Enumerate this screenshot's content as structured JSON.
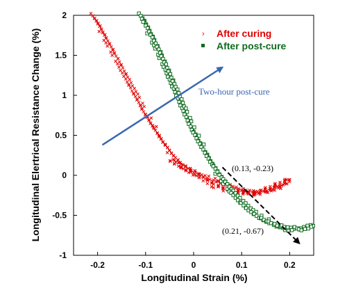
{
  "colors": {
    "after_curing": "#e00000",
    "after_post_cure": "#0e6b1e",
    "annotation_arrow": "#3a66b0"
  },
  "chart_data": {
    "type": "scatter",
    "xlabel": "Longitudinal Strain (%)",
    "ylabel": "Longitudinal Elertrical Resistance Change (%)",
    "xlim": [
      -0.25,
      0.25
    ],
    "ylim": [
      -1,
      2
    ],
    "x_ticks": [
      "-0.2",
      "-0.1",
      "0",
      "0.1",
      "0.2"
    ],
    "y_ticks": [
      "-1",
      "-0.5",
      "0",
      "0.5",
      "1",
      "1.5",
      "2"
    ],
    "grid": false,
    "legend_position": "top-right",
    "series": [
      {
        "name": "After curing",
        "marker": "x",
        "x": [
          -0.21,
          -0.2,
          -0.18,
          -0.16,
          -0.14,
          -0.12,
          -0.1,
          -0.08,
          -0.06,
          -0.04,
          -0.02,
          0.0,
          0.02,
          0.05,
          0.08,
          0.1,
          0.13,
          0.15,
          0.17,
          0.19,
          0.2,
          0.13,
          0.08,
          0.04,
          0.0,
          -0.03,
          -0.05
        ],
        "y": [
          2.0,
          1.9,
          1.68,
          1.45,
          1.22,
          1.0,
          0.77,
          0.57,
          0.38,
          0.22,
          0.1,
          0.02,
          -0.02,
          -0.07,
          -0.14,
          -0.18,
          -0.22,
          -0.2,
          -0.17,
          -0.12,
          -0.05,
          -0.23,
          -0.2,
          -0.12,
          0.05,
          0.13,
          0.2
        ]
      },
      {
        "name": "After post-cure",
        "marker": "square",
        "x": [
          -0.11,
          -0.1,
          -0.08,
          -0.06,
          -0.04,
          -0.02,
          0.0,
          0.02,
          0.04,
          0.06,
          0.08,
          0.1,
          0.12,
          0.14,
          0.16,
          0.18,
          0.2,
          0.22,
          0.24,
          0.25
        ],
        "y": [
          2.0,
          1.88,
          1.65,
          1.38,
          1.1,
          0.82,
          0.55,
          0.33,
          0.12,
          -0.05,
          -0.2,
          -0.33,
          -0.45,
          -0.53,
          -0.6,
          -0.64,
          -0.67,
          -0.67,
          -0.65,
          -0.63
        ]
      }
    ],
    "annotations": [
      {
        "text": "Two-hour post-cure",
        "type": "arrow",
        "from": [
          -0.19,
          0.38
        ],
        "to": [
          0.06,
          1.35
        ]
      },
      {
        "text": "(0.13, -0.23)",
        "point": [
          0.13,
          -0.23
        ]
      },
      {
        "text": "(0.21, -0.67)",
        "point": [
          0.21,
          -0.67
        ]
      },
      {
        "text": "",
        "type": "dashed-arrow",
        "from": [
          0.06,
          0.1
        ],
        "to": [
          0.22,
          -0.85
        ]
      }
    ]
  }
}
